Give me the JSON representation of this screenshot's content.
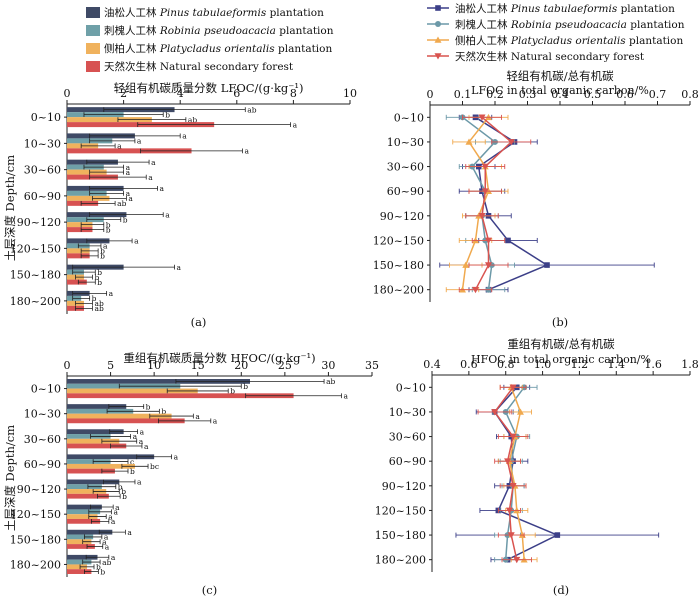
{
  "legend_bar": [
    {
      "cn": "油松人工林",
      "en_italic": "Pinus tabulaeformis",
      "suffix": " plantation",
      "color": "#3f4a66"
    },
    {
      "cn": "刺槐人工林",
      "en_italic": "Robinia pseudoacacia",
      "suffix": " plantation",
      "color": "#6fa0a8"
    },
    {
      "cn": "侧柏人工林",
      "en_italic": "Platycladus orientalis",
      "suffix": " plantation",
      "color": "#f0b25d"
    },
    {
      "cn": "天然次生林",
      "en_italic": "",
      "suffix": "Natural secondary forest",
      "color": "#d75252"
    }
  ],
  "legend_line": [
    {
      "cn": "油松人工林",
      "en_italic": "Pinus tabulaeformis",
      "suffix": " plantation",
      "color": "#3c3f88",
      "marker": "square"
    },
    {
      "cn": "刺槐人工林",
      "en_italic": "Robinia pseudoacacia",
      "suffix": " plantation",
      "color": "#6c99a8",
      "marker": "circle"
    },
    {
      "cn": "侧柏人工林",
      "en_italic": "Platycladus orientalis",
      "suffix": " plantation",
      "color": "#f0a94e",
      "marker": "triangle"
    },
    {
      "cn": "天然次生林",
      "en_italic": "",
      "suffix": "Natural secondary forest",
      "color": "#d9534f",
      "marker": "down-triangle"
    }
  ],
  "y_axis_label": "土层深度 Depth/cm",
  "chart_data": [
    {
      "type": "bar",
      "orientation": "horizontal",
      "panel_label": "(a)",
      "title": "轻组有机碳质量分数 LFOC/(g·kg⁻¹)",
      "categories": [
        "0~10",
        "10~30",
        "30~60",
        "60~90",
        "90~120",
        "120~150",
        "150~180",
        "180~200"
      ],
      "xlim": [
        0,
        10
      ],
      "xticks": [
        0,
        2,
        4,
        6,
        8,
        10
      ],
      "series": [
        {
          "name": "油松人工林",
          "values": [
            3.8,
            2.4,
            1.8,
            2.0,
            2.1,
            1.5,
            2.0,
            0.8
          ],
          "errors": [
            2.5,
            1.6,
            1.1,
            1.2,
            1.3,
            0.8,
            1.8,
            0.6
          ],
          "letters": [
            "ab",
            "a",
            "a",
            "a",
            "a",
            "a",
            "a",
            "a"
          ]
        },
        {
          "name": "刺槐人工林",
          "values": [
            2.0,
            1.6,
            1.3,
            1.4,
            1.3,
            0.8,
            0.6,
            0.5
          ],
          "errors": [
            1.4,
            0.8,
            0.7,
            0.6,
            0.6,
            0.4,
            0.4,
            0.3
          ],
          "letters": [
            "b",
            "a",
            "a",
            "a",
            "b",
            "a",
            "b",
            "b"
          ]
        },
        {
          "name": "侧柏人工林",
          "values": [
            3.0,
            1.1,
            1.4,
            1.5,
            0.9,
            0.8,
            0.6,
            0.6
          ],
          "errors": [
            1.2,
            0.6,
            0.6,
            0.6,
            0.4,
            0.3,
            0.3,
            0.3
          ],
          "letters": [
            "ab",
            "a",
            "a",
            "a",
            "b",
            "b",
            "b",
            "ab"
          ]
        },
        {
          "name": "天然次生林",
          "values": [
            5.2,
            4.4,
            1.8,
            1.1,
            0.9,
            0.8,
            0.7,
            0.6
          ],
          "errors": [
            2.7,
            1.8,
            1.0,
            0.6,
            0.4,
            0.3,
            0.3,
            0.3
          ],
          "letters": [
            "a",
            "a",
            "a",
            "ab",
            "b",
            "b",
            "b",
            "ab"
          ]
        }
      ]
    },
    {
      "type": "line",
      "orientation": "vertical-profile",
      "panel_label": "(b)",
      "title_cn": "轻组有机碳/总有机碳",
      "title_en": "LFOC in total organic carbon/%",
      "categories": [
        "0~10",
        "10~30",
        "30~60",
        "60~90",
        "90~120",
        "120~150",
        "150~180",
        "180~200"
      ],
      "xlim": [
        0,
        0.8
      ],
      "xticks": [
        "0",
        "0.1",
        "0.2",
        "0.3",
        "0.4",
        "0.5",
        "0.6",
        "0.7",
        "0.8"
      ],
      "series": [
        {
          "name": "油松人工林",
          "values": [
            0.14,
            0.26,
            0.15,
            0.16,
            0.18,
            0.24,
            0.36,
            0.18
          ],
          "errors": [
            0.05,
            0.07,
            0.05,
            0.07,
            0.07,
            0.09,
            0.33,
            0.06
          ]
        },
        {
          "name": "刺槐人工林",
          "values": [
            0.1,
            0.2,
            0.13,
            0.17,
            0.16,
            0.17,
            0.19,
            0.18
          ],
          "errors": [
            0.05,
            0.06,
            0.04,
            0.05,
            0.05,
            0.06,
            0.07,
            0.05
          ]
        },
        {
          "name": "侧柏人工林",
          "values": [
            0.18,
            0.12,
            0.17,
            0.18,
            0.15,
            0.14,
            0.11,
            0.1
          ],
          "errors": [
            0.06,
            0.05,
            0.05,
            0.06,
            0.05,
            0.05,
            0.05,
            0.05
          ]
        },
        {
          "name": "天然次生林",
          "values": [
            0.16,
            0.25,
            0.17,
            0.17,
            0.16,
            0.18,
            0.18,
            0.14
          ],
          "errors": [
            0.06,
            0.06,
            0.06,
            0.05,
            0.05,
            0.05,
            0.06,
            0.05
          ]
        }
      ]
    },
    {
      "type": "bar",
      "orientation": "horizontal",
      "panel_label": "(c)",
      "title": "重组有机碳质量分数 HFOC/(g·kg⁻¹)",
      "categories": [
        "0~10",
        "10~30",
        "30~60",
        "60~90",
        "90~120",
        "120~150",
        "150~180",
        "180~200"
      ],
      "xlim": [
        0,
        35
      ],
      "xticks": [
        0,
        5,
        10,
        15,
        20,
        25,
        30,
        35
      ],
      "series": [
        {
          "name": "油松人工林",
          "values": [
            21.0,
            6.8,
            6.5,
            10.0,
            6.0,
            4.0,
            5.2,
            3.5
          ],
          "errors": [
            8.5,
            2.0,
            1.6,
            2.0,
            1.8,
            1.3,
            1.5,
            1.3
          ],
          "letters": [
            "ab",
            "b",
            "a",
            "a",
            "a",
            "a",
            "a",
            "a"
          ]
        },
        {
          "name": "刺槐人工林",
          "values": [
            13.0,
            7.6,
            5.0,
            5.0,
            4.0,
            3.8,
            3.0,
            2.8
          ],
          "errors": [
            7.0,
            3.0,
            2.3,
            2.0,
            1.6,
            1.3,
            1.0,
            1.0
          ],
          "letters": [
            "b",
            "b",
            "a",
            "c",
            "b",
            "a",
            "a",
            "ab"
          ]
        },
        {
          "name": "侧柏人工林",
          "values": [
            15.0,
            12.0,
            6.0,
            7.8,
            4.5,
            3.5,
            2.8,
            2.3
          ],
          "errors": [
            3.5,
            2.5,
            2.0,
            1.5,
            1.5,
            1.0,
            1.0,
            0.8
          ],
          "letters": [
            "b",
            "a",
            "a",
            "bc",
            "b",
            "a",
            "a",
            "b"
          ]
        },
        {
          "name": "天然次生林",
          "values": [
            26.0,
            13.5,
            6.8,
            5.5,
            4.8,
            3.8,
            3.2,
            2.8
          ],
          "errors": [
            5.5,
            3.0,
            1.8,
            1.5,
            1.3,
            1.0,
            0.9,
            0.8
          ],
          "letters": [
            "a",
            "a",
            "a",
            "b",
            "b",
            "a",
            "a",
            "b"
          ]
        }
      ]
    },
    {
      "type": "line",
      "orientation": "vertical-profile",
      "panel_label": "(d)",
      "title_cn": "重组有机碳/总有机碳",
      "title_en": "HFOC in total organic carbon/%",
      "categories": [
        "0~10",
        "10~30",
        "30~60",
        "60~90",
        "90~120",
        "120~150",
        "150~180",
        "180~200"
      ],
      "xlim": [
        0.4,
        1.8
      ],
      "xticks": [
        "0.4",
        "0.6",
        "0.8",
        "1.0",
        "1.2",
        "1.4",
        "1.6",
        "1.8"
      ],
      "series": [
        {
          "name": "油松人工林",
          "values": [
            0.86,
            0.74,
            0.83,
            0.84,
            0.82,
            0.76,
            1.08,
            0.81
          ],
          "errors": [
            0.07,
            0.1,
            0.08,
            0.08,
            0.08,
            0.1,
            0.55,
            0.09
          ]
        },
        {
          "name": "刺槐人工林",
          "values": [
            0.9,
            0.8,
            0.86,
            0.83,
            0.84,
            0.83,
            0.81,
            0.8
          ],
          "errors": [
            0.07,
            0.07,
            0.07,
            0.06,
            0.06,
            0.06,
            0.07,
            0.06
          ]
        },
        {
          "name": "侧柏人工林",
          "values": [
            0.83,
            0.88,
            0.85,
            0.82,
            0.85,
            0.86,
            0.89,
            0.9
          ],
          "errors": [
            0.06,
            0.06,
            0.06,
            0.06,
            0.06,
            0.06,
            0.07,
            0.07
          ]
        },
        {
          "name": "天然次生林",
          "values": [
            0.84,
            0.74,
            0.84,
            0.81,
            0.84,
            0.82,
            0.83,
            0.86
          ],
          "errors": [
            0.07,
            0.09,
            0.08,
            0.07,
            0.07,
            0.06,
            0.07,
            0.08
          ]
        }
      ]
    }
  ]
}
